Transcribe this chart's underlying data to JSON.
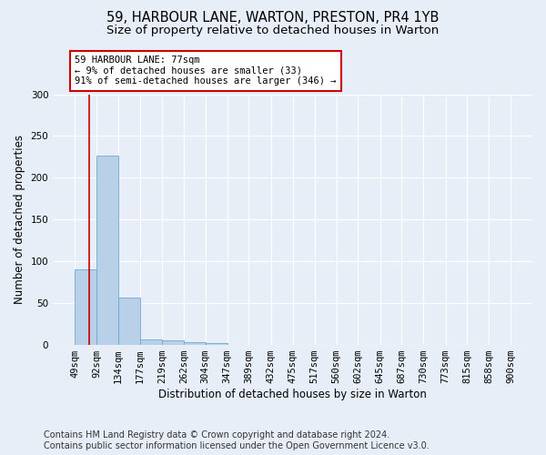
{
  "title_line1": "59, HARBOUR LANE, WARTON, PRESTON, PR4 1YB",
  "title_line2": "Size of property relative to detached houses in Warton",
  "xlabel": "Distribution of detached houses by size in Warton",
  "ylabel": "Number of detached properties",
  "bin_edges": [
    49,
    92,
    134,
    177,
    219,
    262,
    304,
    347,
    389,
    432,
    475,
    517,
    560,
    602,
    645,
    687,
    730,
    773,
    815,
    858,
    900
  ],
  "bar_heights": [
    90,
    227,
    57,
    7,
    5,
    3,
    2,
    0,
    0,
    0,
    0,
    0,
    0,
    0,
    0,
    0,
    0,
    0,
    0,
    0
  ],
  "bar_color": "#b8d0e8",
  "bar_edgecolor": "#6aaad4",
  "property_size": 77,
  "annotation_line1": "59 HARBOUR LANE: 77sqm",
  "annotation_line2": "← 9% of detached houses are smaller (33)",
  "annotation_line3": "91% of semi-detached houses are larger (346) →",
  "red_line_color": "#cc0000",
  "annotation_box_edgecolor": "#cc0000",
  "annotation_box_facecolor": "#ffffff",
  "ylim": [
    0,
    300
  ],
  "yticks": [
    0,
    50,
    100,
    150,
    200,
    250,
    300
  ],
  "footnote_line1": "Contains HM Land Registry data © Crown copyright and database right 2024.",
  "footnote_line2": "Contains public sector information licensed under the Open Government Licence v3.0.",
  "background_color": "#e8eef7",
  "plot_background_color": "#e8eef7",
  "grid_color": "#ffffff",
  "title_fontsize": 10.5,
  "subtitle_fontsize": 9.5,
  "axis_label_fontsize": 8.5,
  "tick_fontsize": 7.5,
  "annotation_fontsize": 7.5,
  "footnote_fontsize": 7
}
